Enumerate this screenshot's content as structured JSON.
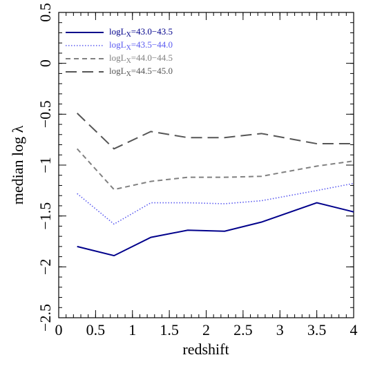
{
  "chart_data": {
    "type": "line",
    "x_label": "redshift",
    "y_label": "median log λ",
    "x": [
      0.25,
      0.75,
      1.25,
      1.75,
      2.25,
      2.75,
      3.5,
      4.0
    ],
    "series": [
      {
        "name": "logLX=43.0−43.5",
        "color": "#00008b",
        "dash": "solid",
        "values": [
          -1.8,
          -1.89,
          -1.71,
          -1.64,
          -1.65,
          -1.56,
          -1.37,
          -1.46
        ]
      },
      {
        "name": "logLX=43.5−44.0",
        "color": "#5a5af0",
        "dash": "dotted",
        "values": [
          -1.28,
          -1.58,
          -1.37,
          -1.37,
          -1.38,
          -1.35,
          -1.25,
          -1.18
        ]
      },
      {
        "name": "logLX=44.0−44.5",
        "color": "#808080",
        "dash": "short",
        "values": [
          -0.84,
          -1.24,
          -1.16,
          -1.12,
          -1.12,
          -1.11,
          -1.01,
          -0.96
        ]
      },
      {
        "name": "logLX=44.5−45.0",
        "color": "#555555",
        "dash": "long",
        "values": [
          -0.49,
          -0.84,
          -0.67,
          -0.73,
          -0.73,
          -0.69,
          -0.79,
          -0.79
        ]
      }
    ],
    "xlim": [
      0,
      4
    ],
    "xticks": [
      0,
      0.5,
      1,
      1.5,
      2,
      2.5,
      3,
      3.5,
      4
    ],
    "ylim": [
      -2.5,
      0.5
    ],
    "yticks": [
      0.5,
      0,
      {
        "value": -0.5,
        "label": "−0.5"
      },
      {
        "value": -1,
        "label": "−1"
      },
      {
        "value": -1.5,
        "label": "−1.5"
      },
      {
        "value": -2,
        "label": "−2"
      },
      {
        "value": -2.5,
        "label": "−2.5"
      }
    ],
    "legend": "top-left"
  }
}
